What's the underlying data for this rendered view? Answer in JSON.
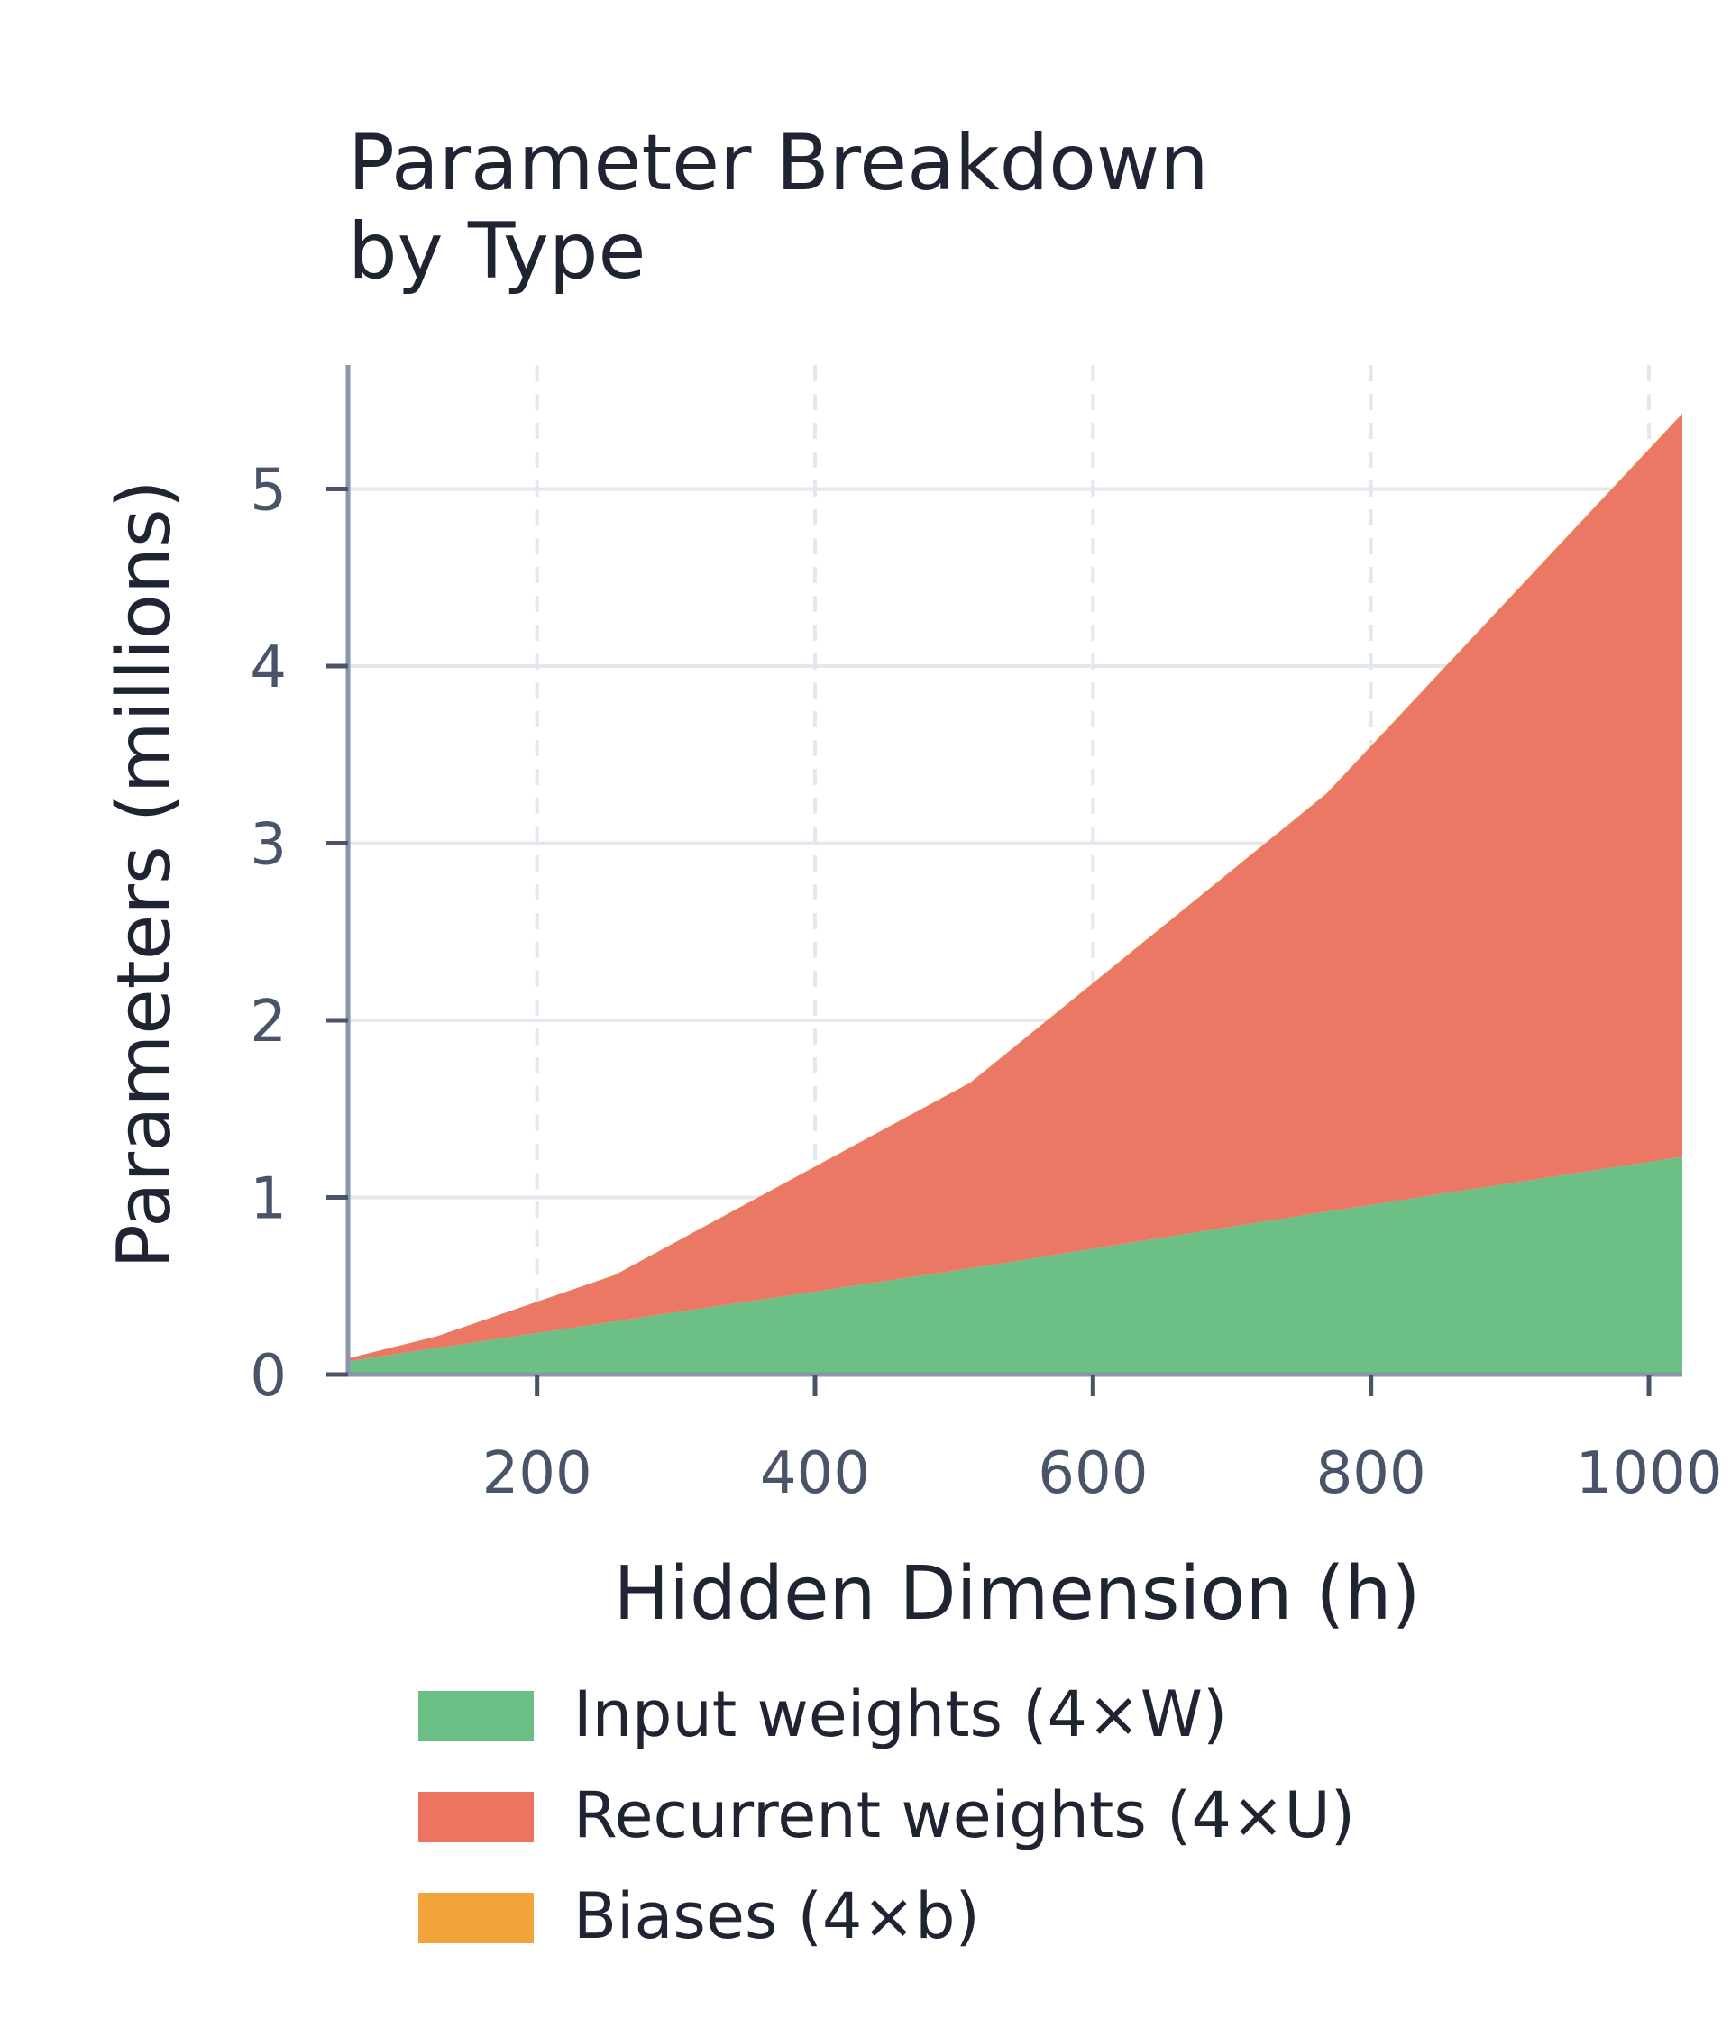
{
  "chart_data": {
    "type": "area",
    "stacked": true,
    "title_lines": [
      "Parameter Breakdown",
      "by Type"
    ],
    "xlabel": "Hidden Dimension (h)",
    "ylabel": "Parameters (millions)",
    "xlim": [
      64,
      1024
    ],
    "ylim": [
      0,
      5.7
    ],
    "x_ticks": [
      200,
      400,
      600,
      800,
      1000
    ],
    "x_tick_labels": [
      "200",
      "400",
      "600",
      "800",
      "1000"
    ],
    "y_ticks": [
      0,
      1,
      2,
      3,
      4,
      5
    ],
    "y_tick_labels": [
      "0",
      "1",
      "2",
      "3",
      "4",
      "5"
    ],
    "grid": true,
    "legend_position": "bottom",
    "x": [
      64,
      128,
      256,
      512,
      768,
      1024
    ],
    "series": [
      {
        "name": "Input weights (4×W)",
        "color": "#69bf84",
        "values": [
          0.075,
          0.15,
          0.3,
          0.6,
          0.92,
          1.23
        ]
      },
      {
        "name": "Recurrent weights (4×U)",
        "color": "#eb7561",
        "values": [
          0.016,
          0.066,
          0.262,
          1.049,
          2.359,
          4.194
        ]
      },
      {
        "name": "Biases (4×b)",
        "color": "#f2a43a",
        "values": [
          0.0003,
          0.0005,
          0.001,
          0.002,
          0.003,
          0.004
        ]
      }
    ]
  }
}
